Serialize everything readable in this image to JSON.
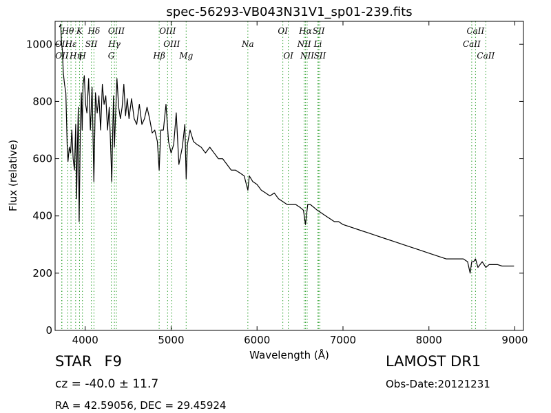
{
  "chart_data": {
    "type": "line",
    "title": "spec-56293-VB043N31V1_sp01-239.fits",
    "xlabel": "Wavelength (Å)",
    "ylabel": "Flux (relative)",
    "xlim": [
      3650,
      9100
    ],
    "ylim": [
      0,
      1080
    ],
    "xticks": [
      4000,
      5000,
      6000,
      7000,
      8000,
      9000
    ],
    "yticks": [
      0,
      200,
      400,
      600,
      800,
      1000
    ],
    "grid": false,
    "line_color": "#000000",
    "marker_color": "#2ca02c",
    "series": [
      {
        "x": [
          3700,
          3715,
          3725,
          3735,
          3745,
          3760,
          3775,
          3790,
          3800,
          3815,
          3830,
          3845,
          3860,
          3875,
          3890,
          3900,
          3910,
          3920,
          3930,
          3945,
          3955,
          3965,
          3975,
          3990,
          4005,
          4020,
          4040,
          4060,
          4080,
          4101,
          4120,
          4140,
          4160,
          4180,
          4200,
          4220,
          4240,
          4260,
          4280,
          4300,
          4310,
          4320,
          4330,
          4340,
          4350,
          4370,
          4390,
          4410,
          4430,
          4450,
          4470,
          4490,
          4510,
          4540,
          4570,
          4600,
          4630,
          4660,
          4690,
          4720,
          4750,
          4780,
          4810,
          4840,
          4861,
          4880,
          4910,
          4940,
          4970,
          5000,
          5030,
          5060,
          5090,
          5130,
          5160,
          5175,
          5190,
          5220,
          5260,
          5300,
          5350,
          5400,
          5450,
          5500,
          5550,
          5600,
          5650,
          5700,
          5750,
          5800,
          5850,
          5893,
          5910,
          5950,
          6000,
          6050,
          6100,
          6150,
          6200,
          6250,
          6300,
          6350,
          6400,
          6450,
          6500,
          6540,
          6563,
          6590,
          6620,
          6660,
          6700,
          6750,
          6800,
          6850,
          6900,
          6950,
          7000,
          7100,
          7200,
          7300,
          7400,
          7500,
          7600,
          7700,
          7800,
          7900,
          8000,
          8100,
          8200,
          8300,
          8400,
          8450,
          8480,
          8498,
          8520,
          8542,
          8570,
          8620,
          8662,
          8700,
          8750,
          8800,
          8850,
          8900,
          8950,
          8990
        ],
        "y": [
          1060,
          1070,
          1000,
          980,
          900,
          860,
          830,
          650,
          590,
          640,
          620,
          700,
          600,
          560,
          720,
          460,
          640,
          780,
          380,
          720,
          830,
          700,
          860,
          890,
          790,
          760,
          880,
          700,
          850,
          520,
          830,
          760,
          820,
          700,
          860,
          790,
          820,
          700,
          780,
          610,
          520,
          690,
          820,
          640,
          720,
          880,
          780,
          740,
          780,
          860,
          750,
          810,
          740,
          810,
          740,
          720,
          790,
          720,
          740,
          780,
          740,
          690,
          700,
          660,
          560,
          700,
          700,
          790,
          660,
          620,
          650,
          760,
          580,
          640,
          720,
          530,
          650,
          700,
          660,
          650,
          640,
          620,
          640,
          620,
          600,
          600,
          580,
          560,
          560,
          550,
          540,
          490,
          540,
          520,
          510,
          490,
          480,
          470,
          480,
          460,
          450,
          440,
          440,
          440,
          430,
          420,
          370,
          440,
          440,
          430,
          420,
          410,
          400,
          390,
          380,
          380,
          370,
          360,
          350,
          340,
          330,
          320,
          310,
          300,
          290,
          280,
          270,
          260,
          250,
          250,
          250,
          240,
          200,
          240,
          240,
          250,
          220,
          240,
          220,
          230,
          230,
          230,
          225,
          225,
          225,
          225
        ]
      }
    ],
    "spectral_lines": [
      {
        "label": "Hθ",
        "x": 3798,
        "row": 1
      },
      {
        "label": "K",
        "x": 3934,
        "row": 1
      },
      {
        "label": "Hδ",
        "x": 4102,
        "row": 1
      },
      {
        "label": "OIII",
        "x": 4363,
        "row": 1
      },
      {
        "label": "OIII",
        "x": 4959,
        "row": 1
      },
      {
        "label": "OI",
        "x": 6300,
        "row": 1
      },
      {
        "label": "Hα",
        "x": 6563,
        "row": 1
      },
      {
        "label": "SII",
        "x": 6717,
        "row": 1
      },
      {
        "label": "CaII",
        "x": 8542,
        "row": 1
      },
      {
        "label": "OII",
        "x": 3727,
        "row": 2
      },
      {
        "label": "Hε",
        "x": 3835,
        "row": 2
      },
      {
        "label": "SII",
        "x": 4072,
        "row": 2
      },
      {
        "label": "Hγ",
        "x": 4340,
        "row": 2
      },
      {
        "label": "OIII",
        "x": 5007,
        "row": 2
      },
      {
        "label": "Na",
        "x": 5893,
        "row": 2
      },
      {
        "label": "NII",
        "x": 6548,
        "row": 2
      },
      {
        "label": "Li",
        "x": 6708,
        "row": 2
      },
      {
        "label": "CaII",
        "x": 8498,
        "row": 2
      },
      {
        "label": "OII",
        "x": 3729,
        "row": 3
      },
      {
        "label": "Hη",
        "x": 3889,
        "row": 3
      },
      {
        "label": "H",
        "x": 3968,
        "row": 3
      },
      {
        "label": "G",
        "x": 4304,
        "row": 3
      },
      {
        "label": "Hβ",
        "x": 4861,
        "row": 3
      },
      {
        "label": "Mg",
        "x": 5175,
        "row": 3
      },
      {
        "label": "OI",
        "x": 6364,
        "row": 3
      },
      {
        "label": "NII",
        "x": 6583,
        "row": 3
      },
      {
        "label": "SII",
        "x": 6731,
        "row": 3
      },
      {
        "label": "CaII",
        "x": 8662,
        "row": 3
      }
    ]
  },
  "info": {
    "class_label": "STAR",
    "subclass": "F9",
    "survey": "LAMOST DR1",
    "cz": "cz = -40.0 ± 11.7",
    "obs_date": "Obs-Date:20121231",
    "radec": "RA = 42.59056, DEC = 29.45924"
  }
}
